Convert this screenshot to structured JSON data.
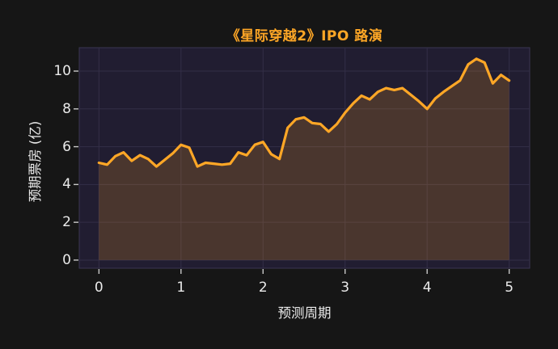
{
  "colors": {
    "page_bg": "#161616",
    "plot_bg": "#211d31",
    "grid": "#332e47",
    "spine": "#3a3552",
    "line": "#ffa726",
    "fill": "rgba(255,167,38,0.19)",
    "tick_mark": "#c9c9c9",
    "text": "#eaeaea",
    "title": "#ffa726"
  },
  "chart_data": {
    "type": "area",
    "title": "《星际穿越2》IPO 路演",
    "xlabel": "预测周期",
    "ylabel": "预期票房 (亿)",
    "x_ticks": [
      0,
      1,
      2,
      3,
      4,
      5
    ],
    "y_ticks": [
      0,
      2,
      4,
      6,
      8,
      10
    ],
    "xlim": [
      -0.24,
      5.25
    ],
    "ylim": [
      -0.43,
      11.24
    ],
    "grid": true,
    "legend": "none",
    "series_name": "预期票房",
    "x": [
      0.0,
      0.1,
      0.2,
      0.3,
      0.4,
      0.5,
      0.6,
      0.7,
      0.8,
      0.9,
      1.0,
      1.1,
      1.2,
      1.3,
      1.4,
      1.5,
      1.6,
      1.7,
      1.8,
      1.9,
      2.0,
      2.1,
      2.2,
      2.3,
      2.4,
      2.5,
      2.6,
      2.7,
      2.8,
      2.9,
      3.0,
      3.1,
      3.2,
      3.3,
      3.4,
      3.5,
      3.6,
      3.7,
      3.8,
      3.9,
      4.0,
      4.1,
      4.2,
      4.3,
      4.4,
      4.5,
      4.6,
      4.7,
      4.8,
      4.9,
      5.0
    ],
    "values": [
      5.15,
      5.05,
      5.5,
      5.7,
      5.25,
      5.55,
      5.35,
      4.95,
      5.3,
      5.65,
      6.1,
      5.95,
      4.95,
      5.15,
      5.1,
      5.05,
      5.1,
      5.7,
      5.55,
      6.1,
      6.25,
      5.6,
      5.35,
      7.0,
      7.45,
      7.55,
      7.25,
      7.2,
      6.8,
      7.2,
      7.8,
      8.3,
      8.7,
      8.5,
      8.9,
      9.1,
      9.0,
      9.1,
      8.75,
      8.4,
      8.0,
      8.55,
      8.9,
      9.2,
      9.5,
      10.35,
      10.65,
      10.45,
      9.35,
      9.8,
      9.5
    ]
  }
}
